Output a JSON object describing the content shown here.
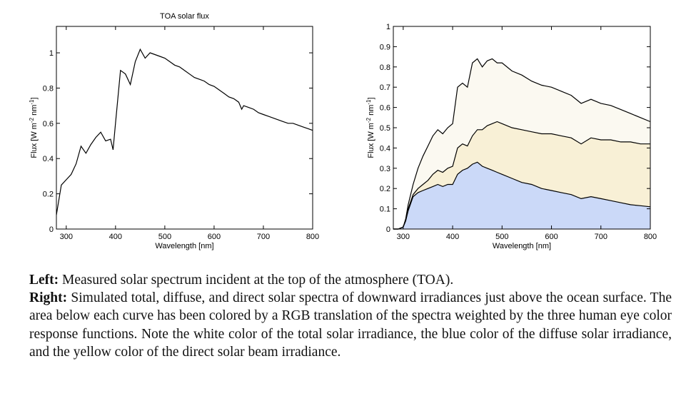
{
  "chart_data": [
    {
      "type": "line",
      "title": "TOA solar flux",
      "xlabel": "Wavelength [nm]",
      "ylabel": "Flux [W m^-2 nm^-1]",
      "xlim": [
        280,
        800
      ],
      "ylim": [
        0,
        1.15
      ],
      "xticks": [
        300,
        400,
        500,
        600,
        700,
        800
      ],
      "yticks": [
        0,
        0.2,
        0.4,
        0.6,
        0.8,
        1
      ],
      "grid": false,
      "series": [
        {
          "color": "#000000",
          "x": [
            280,
            290,
            300,
            310,
            320,
            330,
            340,
            350,
            360,
            370,
            380,
            390,
            395,
            400,
            410,
            420,
            430,
            440,
            450,
            460,
            470,
            480,
            490,
            500,
            510,
            520,
            530,
            540,
            550,
            560,
            570,
            580,
            590,
            600,
            610,
            620,
            630,
            640,
            650,
            656,
            660,
            670,
            680,
            690,
            700,
            710,
            720,
            730,
            740,
            750,
            760,
            770,
            780,
            790,
            800
          ],
          "y": [
            0.08,
            0.25,
            0.28,
            0.31,
            0.37,
            0.47,
            0.43,
            0.48,
            0.52,
            0.55,
            0.5,
            0.51,
            0.45,
            0.6,
            0.9,
            0.88,
            0.82,
            0.95,
            1.02,
            0.97,
            1.0,
            0.99,
            0.98,
            0.97,
            0.95,
            0.93,
            0.92,
            0.9,
            0.88,
            0.86,
            0.85,
            0.84,
            0.82,
            0.81,
            0.79,
            0.77,
            0.75,
            0.74,
            0.72,
            0.68,
            0.7,
            0.69,
            0.68,
            0.66,
            0.65,
            0.64,
            0.63,
            0.62,
            0.61,
            0.6,
            0.6,
            0.59,
            0.58,
            0.57,
            0.56
          ]
        }
      ]
    },
    {
      "type": "area",
      "title": "",
      "xlabel": "Wavelength [nm]",
      "ylabel": "Flux [W m^-2 nm^-1]",
      "xlim": [
        280,
        800
      ],
      "ylim": [
        0,
        1
      ],
      "xticks": [
        300,
        400,
        500,
        600,
        700,
        800
      ],
      "yticks": [
        0,
        0.1,
        0.2,
        0.3,
        0.4,
        0.5,
        0.6,
        0.7,
        0.8,
        0.9,
        1
      ],
      "grid": false,
      "x": [
        280,
        290,
        300,
        305,
        310,
        320,
        330,
        340,
        350,
        360,
        370,
        380,
        390,
        400,
        410,
        420,
        430,
        440,
        450,
        460,
        470,
        480,
        490,
        500,
        520,
        540,
        560,
        580,
        600,
        620,
        640,
        660,
        680,
        700,
        720,
        740,
        760,
        780,
        800
      ],
      "series": [
        {
          "fill": "#fbf9f1",
          "y": [
            0,
            0,
            0.01,
            0.05,
            0.12,
            0.22,
            0.3,
            0.36,
            0.41,
            0.46,
            0.49,
            0.47,
            0.5,
            0.52,
            0.7,
            0.72,
            0.7,
            0.82,
            0.84,
            0.8,
            0.83,
            0.84,
            0.82,
            0.82,
            0.78,
            0.76,
            0.73,
            0.71,
            0.7,
            0.68,
            0.66,
            0.62,
            0.64,
            0.62,
            0.61,
            0.59,
            0.57,
            0.55,
            0.53
          ]
        },
        {
          "fill": "#f8f0d6",
          "y": [
            0,
            0,
            0.01,
            0.04,
            0.1,
            0.17,
            0.2,
            0.22,
            0.24,
            0.27,
            0.29,
            0.28,
            0.3,
            0.31,
            0.4,
            0.42,
            0.41,
            0.46,
            0.49,
            0.49,
            0.51,
            0.52,
            0.53,
            0.52,
            0.5,
            0.49,
            0.48,
            0.47,
            0.47,
            0.46,
            0.45,
            0.42,
            0.45,
            0.44,
            0.44,
            0.43,
            0.43,
            0.42,
            0.42
          ]
        },
        {
          "fill": "#cbd9f8",
          "y": [
            0,
            0,
            0.01,
            0.04,
            0.09,
            0.16,
            0.18,
            0.19,
            0.2,
            0.21,
            0.22,
            0.21,
            0.22,
            0.22,
            0.27,
            0.29,
            0.3,
            0.32,
            0.33,
            0.31,
            0.3,
            0.29,
            0.28,
            0.27,
            0.25,
            0.23,
            0.22,
            0.2,
            0.19,
            0.18,
            0.17,
            0.15,
            0.16,
            0.15,
            0.14,
            0.13,
            0.12,
            0.115,
            0.11
          ]
        }
      ]
    }
  ],
  "caption": {
    "left_label": "Left:",
    "left_text": " Measured solar spectrum incident at the top of the atmosphere (TOA).",
    "right_label": "Right:",
    "right_text": " Simulated total, diffuse, and direct solar spectra of downward irradiances just above the ocean surface. The area below each curve has been colored by a RGB translation of the spectra weighted by the three human eye color response functions. Note the white color of the total solar irradiance, the blue color of the diffuse solar irradiance, and the yellow color of the direct solar beam irradiance."
  }
}
